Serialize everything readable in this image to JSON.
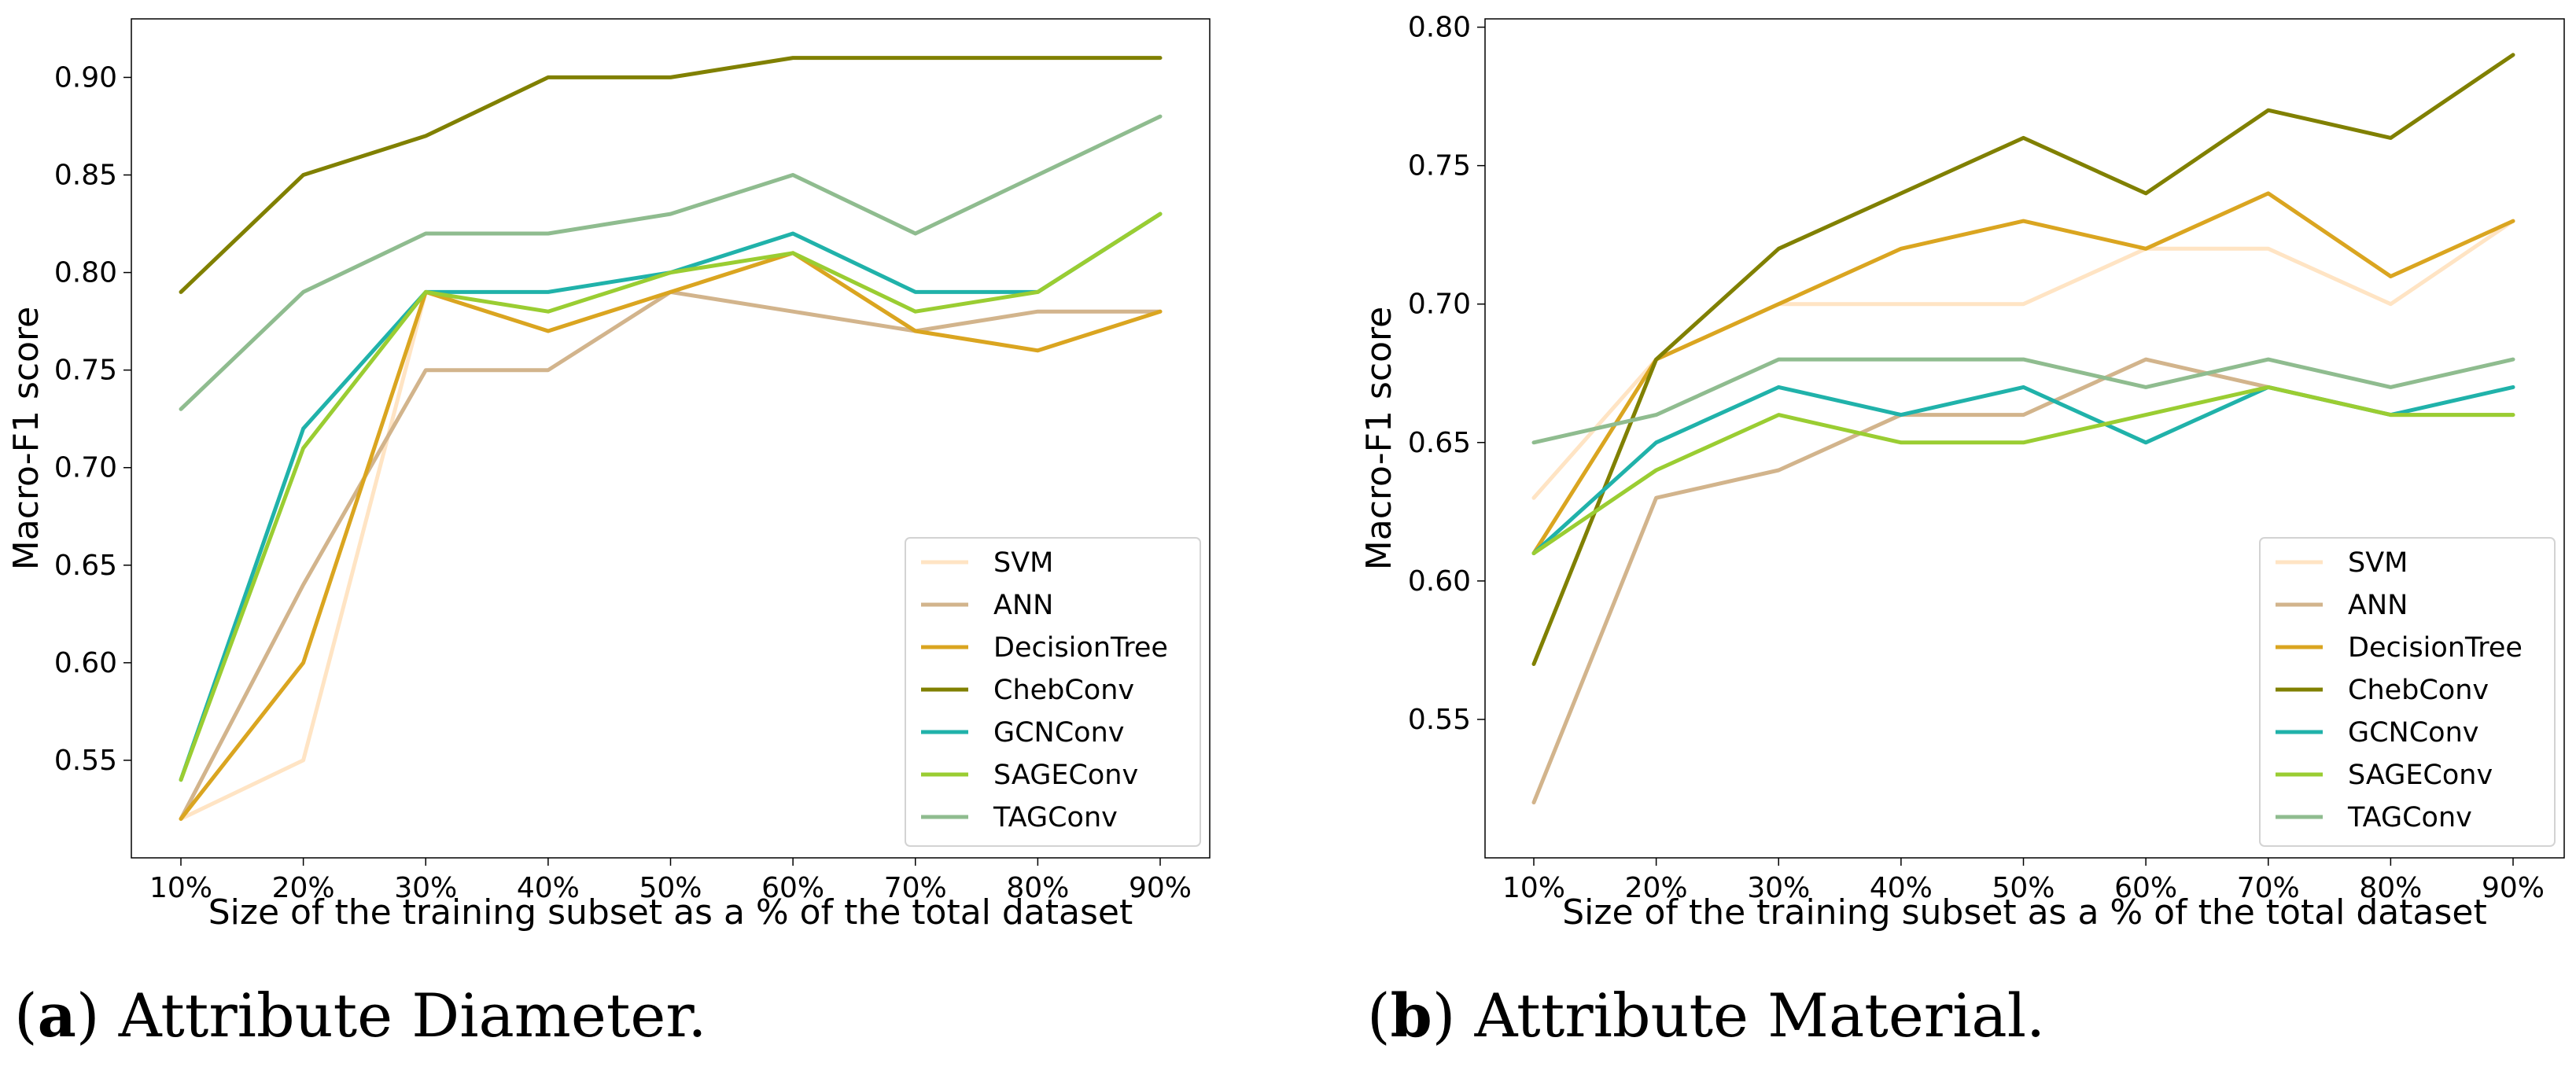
{
  "chart_data": [
    {
      "type": "line",
      "caption_letter": "a",
      "caption_text": "Attribute Diameter.",
      "xlabel": "Size of the training subset as a % of the total dataset",
      "ylabel": "Macro-F1 score",
      "categories": [
        "10%",
        "20%",
        "30%",
        "40%",
        "50%",
        "60%",
        "70%",
        "80%",
        "90%"
      ],
      "ylim": [
        0.5,
        0.93
      ],
      "yticks": [
        0.55,
        0.6,
        0.65,
        0.7,
        0.75,
        0.8,
        0.85,
        0.9
      ],
      "ytick_labels": [
        "0.55",
        "0.60",
        "0.65",
        "0.70",
        "0.75",
        "0.80",
        "0.85",
        "0.90"
      ],
      "legend_position": "lower-right",
      "series": [
        {
          "name": "SVM",
          "color": "#ffe4c4",
          "values": [
            0.52,
            0.55,
            0.79,
            0.77,
            0.79,
            0.81,
            0.77,
            0.76,
            0.78
          ]
        },
        {
          "name": "ANN",
          "color": "#d2b48c",
          "values": [
            0.52,
            0.64,
            0.75,
            0.75,
            0.79,
            0.78,
            0.77,
            0.78,
            0.78
          ]
        },
        {
          "name": "DecisionTree",
          "color": "#daa520",
          "values": [
            0.52,
            0.6,
            0.79,
            0.77,
            0.79,
            0.81,
            0.77,
            0.76,
            0.78
          ]
        },
        {
          "name": "ChebConv",
          "color": "#808000",
          "values": [
            0.79,
            0.85,
            0.87,
            0.9,
            0.9,
            0.91,
            0.91,
            0.91,
            0.91
          ]
        },
        {
          "name": "GCNConv",
          "color": "#20b2aa",
          "values": [
            0.54,
            0.72,
            0.79,
            0.79,
            0.8,
            0.82,
            0.79,
            0.79,
            0.83
          ]
        },
        {
          "name": "SAGEConv",
          "color": "#9acd32",
          "values": [
            0.54,
            0.71,
            0.79,
            0.78,
            0.8,
            0.81,
            0.78,
            0.79,
            0.83
          ]
        },
        {
          "name": "TAGConv",
          "color": "#8fbc8f",
          "values": [
            0.73,
            0.79,
            0.82,
            0.82,
            0.83,
            0.85,
            0.82,
            0.85,
            0.88
          ]
        }
      ]
    },
    {
      "type": "line",
      "caption_letter": "b",
      "caption_text": "Attribute Material.",
      "xlabel": "Size of the training subset as a % of the total dataset",
      "ylabel": "Macro-F1 score",
      "categories": [
        "10%",
        "20%",
        "30%",
        "40%",
        "50%",
        "60%",
        "70%",
        "80%",
        "90%"
      ],
      "ylim": [
        0.5,
        0.803
      ],
      "yticks": [
        0.55,
        0.6,
        0.65,
        0.7,
        0.75,
        0.8
      ],
      "ytick_labels": [
        "0.55",
        "0.60",
        "0.65",
        "0.70",
        "0.75",
        "0.80"
      ],
      "legend_position": "lower-right",
      "series": [
        {
          "name": "SVM",
          "color": "#ffe4c4",
          "values": [
            0.63,
            0.68,
            0.7,
            0.7,
            0.7,
            0.72,
            0.72,
            0.7,
            0.73
          ]
        },
        {
          "name": "ANN",
          "color": "#d2b48c",
          "values": [
            0.52,
            0.63,
            0.64,
            0.66,
            0.66,
            0.68,
            0.67,
            0.66,
            0.66
          ]
        },
        {
          "name": "DecisionTree",
          "color": "#daa520",
          "values": [
            0.61,
            0.68,
            0.7,
            0.72,
            0.73,
            0.72,
            0.74,
            0.71,
            0.73
          ]
        },
        {
          "name": "ChebConv",
          "color": "#808000",
          "values": [
            0.57,
            0.68,
            0.72,
            0.74,
            0.76,
            0.74,
            0.77,
            0.76,
            0.79
          ]
        },
        {
          "name": "GCNConv",
          "color": "#20b2aa",
          "values": [
            0.61,
            0.65,
            0.67,
            0.66,
            0.67,
            0.65,
            0.67,
            0.66,
            0.67
          ]
        },
        {
          "name": "SAGEConv",
          "color": "#9acd32",
          "values": [
            0.61,
            0.64,
            0.66,
            0.65,
            0.65,
            0.66,
            0.67,
            0.66,
            0.66
          ]
        },
        {
          "name": "TAGConv",
          "color": "#8fbc8f",
          "values": [
            0.65,
            0.66,
            0.68,
            0.68,
            0.68,
            0.67,
            0.68,
            0.67,
            0.68
          ]
        }
      ]
    }
  ]
}
